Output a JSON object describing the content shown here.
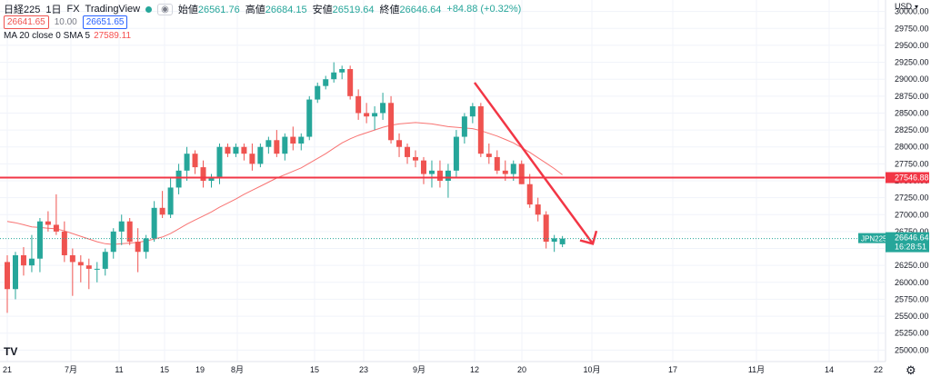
{
  "header": {
    "symbol": "日経225",
    "interval": "1日",
    "exchange": "FX",
    "source": "TradingView",
    "open_label": "始値",
    "open": "26561.76",
    "high_label": "高値",
    "high": "26684.15",
    "low_label": "安値",
    "low": "26519.64",
    "close_label": "終値",
    "close": "26646.64",
    "change": "+84.88 (+0.32%)",
    "sell": "26641.65",
    "spread": "10.00",
    "buy": "26651.65"
  },
  "indicator": {
    "label": "MA 20 close 0 SMA 5",
    "value": "27589.11"
  },
  "currency": "USD",
  "last_price": {
    "symbol": "JPN225",
    "price": "26646.64",
    "countdown": "16:28:51"
  },
  "hline_price": "27546.88",
  "logo": "TV",
  "settings_icon": "gear-icon",
  "colors": {
    "up": "#26a69a",
    "down": "#ef5350",
    "ma": "#f6504f",
    "annotation": "#f23645"
  },
  "chart_data": {
    "type": "candlestick",
    "ylim": [
      24830,
      30170
    ],
    "y_ticks": [
      30000,
      29750,
      29500,
      29250,
      29000,
      28750,
      28500,
      28250,
      28000,
      27750,
      27500,
      27250,
      27000,
      26750,
      26500,
      26250,
      26000,
      25750,
      25500,
      25250,
      25000
    ],
    "x_ticks": [
      "21",
      "7月",
      "11",
      "15",
      "19",
      "8月",
      "15",
      "23",
      "9月",
      "12",
      "20",
      "10月",
      "17",
      "11月",
      "14",
      "22"
    ],
    "candles": [
      {
        "o": 26300,
        "h": 26400,
        "l": 25550,
        "c": 25900
      },
      {
        "o": 25900,
        "h": 26450,
        "l": 25750,
        "c": 26400
      },
      {
        "o": 26400,
        "h": 26520,
        "l": 26100,
        "c": 26250
      },
      {
        "o": 26250,
        "h": 26700,
        "l": 26150,
        "c": 26350
      },
      {
        "o": 26350,
        "h": 26950,
        "l": 26150,
        "c": 26900
      },
      {
        "o": 26900,
        "h": 27050,
        "l": 26750,
        "c": 26850
      },
      {
        "o": 26850,
        "h": 27300,
        "l": 26700,
        "c": 26750
      },
      {
        "o": 26750,
        "h": 26900,
        "l": 26300,
        "c": 26400
      },
      {
        "o": 26400,
        "h": 26500,
        "l": 25800,
        "c": 26300
      },
      {
        "o": 26300,
        "h": 26400,
        "l": 26000,
        "c": 26250
      },
      {
        "o": 26250,
        "h": 26350,
        "l": 25900,
        "c": 26200
      },
      {
        "o": 26200,
        "h": 26300,
        "l": 26000,
        "c": 26200
      },
      {
        "o": 26200,
        "h": 26500,
        "l": 26100,
        "c": 26450
      },
      {
        "o": 26450,
        "h": 26800,
        "l": 26350,
        "c": 26750
      },
      {
        "o": 26750,
        "h": 27000,
        "l": 26550,
        "c": 26900
      },
      {
        "o": 26900,
        "h": 26950,
        "l": 26550,
        "c": 26600
      },
      {
        "o": 26600,
        "h": 26800,
        "l": 26150,
        "c": 26450
      },
      {
        "o": 26450,
        "h": 26700,
        "l": 26350,
        "c": 26650
      },
      {
        "o": 26650,
        "h": 27200,
        "l": 26600,
        "c": 27100
      },
      {
        "o": 27100,
        "h": 27350,
        "l": 26950,
        "c": 27000
      },
      {
        "o": 27000,
        "h": 27550,
        "l": 26950,
        "c": 27400
      },
      {
        "o": 27400,
        "h": 27750,
        "l": 27300,
        "c": 27650
      },
      {
        "o": 27650,
        "h": 28000,
        "l": 27500,
        "c": 27900
      },
      {
        "o": 27900,
        "h": 27950,
        "l": 27600,
        "c": 27700
      },
      {
        "o": 27700,
        "h": 27800,
        "l": 27400,
        "c": 27500
      },
      {
        "o": 27500,
        "h": 27600,
        "l": 27400,
        "c": 27550
      },
      {
        "o": 27550,
        "h": 28050,
        "l": 27450,
        "c": 28000
      },
      {
        "o": 28000,
        "h": 28050,
        "l": 27850,
        "c": 27900
      },
      {
        "o": 27900,
        "h": 28050,
        "l": 27850,
        "c": 28000
      },
      {
        "o": 28000,
        "h": 28050,
        "l": 27800,
        "c": 27900
      },
      {
        "o": 27900,
        "h": 28050,
        "l": 27650,
        "c": 27750
      },
      {
        "o": 27750,
        "h": 28050,
        "l": 27700,
        "c": 28000
      },
      {
        "o": 28000,
        "h": 28150,
        "l": 27900,
        "c": 28100
      },
      {
        "o": 28100,
        "h": 28250,
        "l": 27850,
        "c": 27900
      },
      {
        "o": 27900,
        "h": 28200,
        "l": 27800,
        "c": 28150
      },
      {
        "o": 28150,
        "h": 28300,
        "l": 27950,
        "c": 28050
      },
      {
        "o": 28050,
        "h": 28200,
        "l": 27950,
        "c": 28150
      },
      {
        "o": 28150,
        "h": 28750,
        "l": 28100,
        "c": 28700
      },
      {
        "o": 28700,
        "h": 28950,
        "l": 28650,
        "c": 28900
      },
      {
        "o": 28900,
        "h": 29050,
        "l": 28850,
        "c": 29000
      },
      {
        "o": 29000,
        "h": 29250,
        "l": 28950,
        "c": 29100
      },
      {
        "o": 29100,
        "h": 29200,
        "l": 29000,
        "c": 29150
      },
      {
        "o": 29150,
        "h": 29200,
        "l": 28700,
        "c": 28750
      },
      {
        "o": 28750,
        "h": 28850,
        "l": 28400,
        "c": 28500
      },
      {
        "o": 28500,
        "h": 28650,
        "l": 28350,
        "c": 28450
      },
      {
        "o": 28450,
        "h": 28600,
        "l": 28250,
        "c": 28500
      },
      {
        "o": 28500,
        "h": 28800,
        "l": 28400,
        "c": 28650
      },
      {
        "o": 28650,
        "h": 28750,
        "l": 28050,
        "c": 28100
      },
      {
        "o": 28100,
        "h": 28200,
        "l": 27850,
        "c": 28000
      },
      {
        "o": 28000,
        "h": 28050,
        "l": 27750,
        "c": 27850
      },
      {
        "o": 27850,
        "h": 27950,
        "l": 27700,
        "c": 27800
      },
      {
        "o": 27800,
        "h": 27850,
        "l": 27450,
        "c": 27600
      },
      {
        "o": 27600,
        "h": 27800,
        "l": 27400,
        "c": 27650
      },
      {
        "o": 27650,
        "h": 27800,
        "l": 27400,
        "c": 27500
      },
      {
        "o": 27500,
        "h": 27750,
        "l": 27250,
        "c": 27650
      },
      {
        "o": 27650,
        "h": 28250,
        "l": 27550,
        "c": 28150
      },
      {
        "o": 28150,
        "h": 28500,
        "l": 28050,
        "c": 28450
      },
      {
        "o": 28450,
        "h": 28650,
        "l": 28350,
        "c": 28600
      },
      {
        "o": 28600,
        "h": 28650,
        "l": 27850,
        "c": 27900
      },
      {
        "o": 27900,
        "h": 28050,
        "l": 27750,
        "c": 27850
      },
      {
        "o": 27850,
        "h": 27950,
        "l": 27600,
        "c": 27650
      },
      {
        "o": 27650,
        "h": 27800,
        "l": 27500,
        "c": 27600
      },
      {
        "o": 27600,
        "h": 27800,
        "l": 27500,
        "c": 27750
      },
      {
        "o": 27750,
        "h": 27800,
        "l": 27450,
        "c": 27450
      },
      {
        "o": 27450,
        "h": 27600,
        "l": 27100,
        "c": 27150
      },
      {
        "o": 27150,
        "h": 27250,
        "l": 26900,
        "c": 27000
      },
      {
        "o": 27000,
        "h": 27050,
        "l": 26500,
        "c": 26600
      },
      {
        "o": 26600,
        "h": 26700,
        "l": 26450,
        "c": 26650
      },
      {
        "o": 26561.76,
        "h": 26684.15,
        "l": 26519.64,
        "c": 26646.64
      }
    ],
    "ma20": [
      26900,
      26880,
      26850,
      26820,
      26810,
      26800,
      26790,
      26760,
      26720,
      26680,
      26640,
      26600,
      26570,
      26560,
      26570,
      26580,
      26590,
      26610,
      26640,
      26670,
      26720,
      26790,
      26860,
      26920,
      26980,
      27040,
      27110,
      27170,
      27230,
      27300,
      27360,
      27420,
      27480,
      27540,
      27590,
      27640,
      27690,
      27760,
      27830,
      27900,
      27980,
      28060,
      28120,
      28170,
      28210,
      28250,
      28290,
      28320,
      28340,
      28350,
      28360,
      28350,
      28340,
      28320,
      28300,
      28290,
      28280,
      28270,
      28240,
      28200,
      28160,
      28110,
      28060,
      27990,
      27920,
      27840,
      27760,
      27680,
      27589.11
    ]
  }
}
